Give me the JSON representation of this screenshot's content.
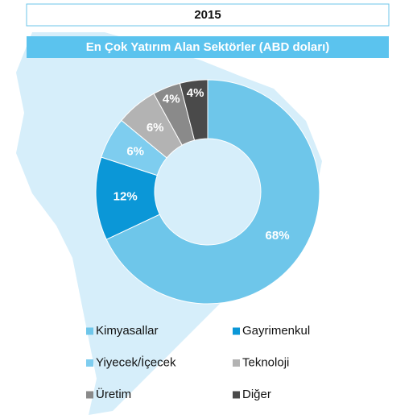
{
  "chart_data": {
    "type": "pie",
    "title": "2015",
    "subtitle": "En Çok Yatırım Alan Sektörler (ABD doları)",
    "categories": [
      "Kimyasallar",
      "Gayrimenkul",
      "Yiyecek/İçecek",
      "Teknoloji",
      "Üretim",
      "Diğer"
    ],
    "values": [
      68,
      12,
      6,
      6,
      4,
      4
    ],
    "value_labels": [
      "68%",
      "12%",
      "6%",
      "6%",
      "4%",
      "4%"
    ],
    "colors": [
      "#6ec6ea",
      "#0b97d7",
      "#7ecdef",
      "#b3b3b3",
      "#8a8a8a",
      "#4a4a4a"
    ],
    "legend": "bottom"
  }
}
